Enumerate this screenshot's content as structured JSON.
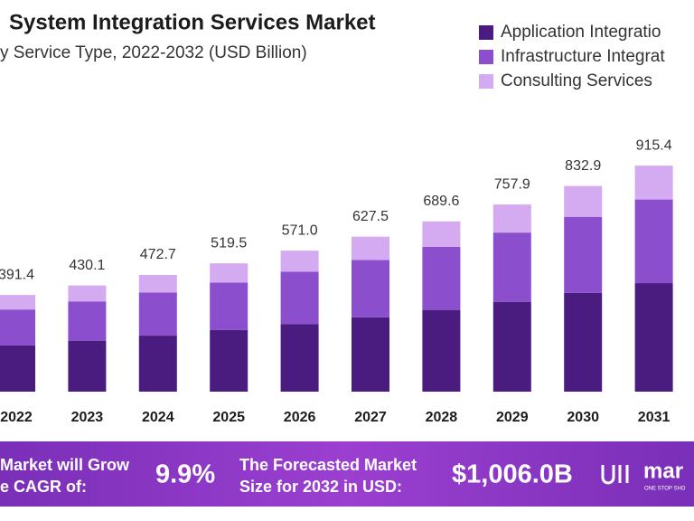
{
  "chart_data": {
    "type": "stacked_bar",
    "title": "System Integration Services Market",
    "subtitle": "y Service Type, 2022-2032 (USD Billion)",
    "categories": [
      "2022",
      "2023",
      "2024",
      "2025",
      "2026",
      "2027",
      "2028",
      "2029",
      "2030",
      "2031"
    ],
    "series": [
      {
        "name": "Application Integratio",
        "color": "#4b1c80",
        "values": [
          187.9,
          206.4,
          226.9,
          249.4,
          274.1,
          301.2,
          331.0,
          363.8,
          399.8,
          439.4
        ]
      },
      {
        "name": "Infrastructure Integrat",
        "color": "#8b4fce",
        "values": [
          144.8,
          159.1,
          174.9,
          192.2,
          211.3,
          232.2,
          255.2,
          280.4,
          308.2,
          338.7
        ]
      },
      {
        "name": "Consulting Services",
        "color": "#d4aaf1",
        "values": [
          58.7,
          64.6,
          70.9,
          77.9,
          85.6,
          94.1,
          103.4,
          113.7,
          124.9,
          137.3
        ]
      }
    ],
    "totals": [
      391.4,
      430.1,
      472.7,
      519.5,
      571.0,
      627.5,
      689.6,
      757.9,
      832.9,
      915.4
    ],
    "total_labels": [
      "391.4",
      "430.1",
      "472.7",
      "519.5",
      "571.0",
      "627.5",
      "689.6",
      "757.9",
      "832.9",
      "915.4"
    ],
    "ylim": [
      0,
      1000
    ]
  },
  "footer": {
    "cagr_text_1": "Market will Grow",
    "cagr_text_2": "e CAGR of:",
    "cagr_value": "9.9%",
    "forecast_text_1": "The Forecasted Market",
    "forecast_text_2": "Size for 2032 in USD:",
    "forecast_value": "$1,006.0B",
    "logo": "mar",
    "logo_tagline": "ONE STOP SHO"
  }
}
